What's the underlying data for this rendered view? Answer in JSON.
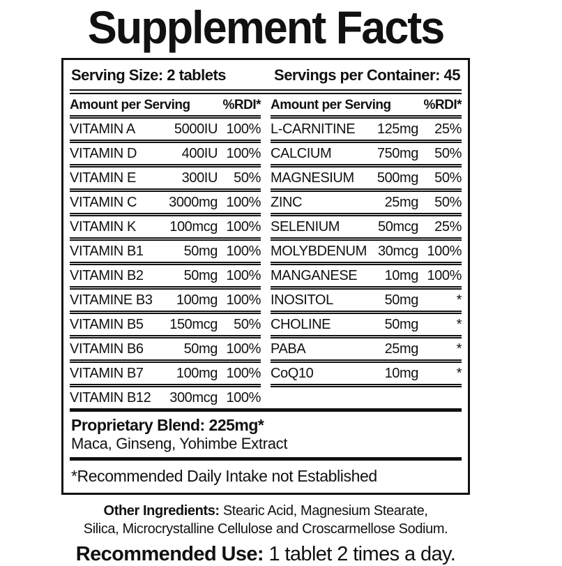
{
  "title": "Supplement Facts",
  "serving": {
    "size_label": "Serving Size: 2 tablets",
    "per_container_label": "Servings per Container: 45"
  },
  "columns": {
    "header_amount": "Amount per Serving",
    "header_rdi": "%RDI*"
  },
  "left_rows": [
    {
      "name": "VITAMIN A",
      "amount": "5000IU",
      "rdi": "100%"
    },
    {
      "name": "VITAMIN D",
      "amount": "400IU",
      "rdi": "100%"
    },
    {
      "name": "VITAMIN E",
      "amount": "300IU",
      "rdi": "50%"
    },
    {
      "name": "VITAMIN C",
      "amount": "3000mg",
      "rdi": "100%"
    },
    {
      "name": "VITAMIN K",
      "amount": "100mcg",
      "rdi": "100%"
    },
    {
      "name": "VITAMIN B1",
      "amount": "50mg",
      "rdi": "100%"
    },
    {
      "name": "VITAMIN B2",
      "amount": "50mg",
      "rdi": "100%"
    },
    {
      "name": "VITAMINE B3",
      "amount": "100mg",
      "rdi": "100%"
    },
    {
      "name": "VITAMIN B5",
      "amount": "150mcg",
      "rdi": "50%"
    },
    {
      "name": "VITAMIN B6",
      "amount": "50mg",
      "rdi": "100%"
    },
    {
      "name": "VITAMIN B7",
      "amount": "100mg",
      "rdi": "100%"
    },
    {
      "name": "VITAMIN B12",
      "amount": "300mcg",
      "rdi": "100%"
    }
  ],
  "right_rows": [
    {
      "name": "L-CARNITINE",
      "amount": "125mg",
      "rdi": "25%"
    },
    {
      "name": "CALCIUM",
      "amount": "750mg",
      "rdi": "50%"
    },
    {
      "name": "MAGNESIUM",
      "amount": "500mg",
      "rdi": "50%"
    },
    {
      "name": "ZINC",
      "amount": "25mg",
      "rdi": "50%"
    },
    {
      "name": "SELENIUM",
      "amount": "50mcg",
      "rdi": "25%"
    },
    {
      "name": "MOLYBDENUM",
      "amount": "30mcg",
      "rdi": "100%"
    },
    {
      "name": "MANGANESE",
      "amount": "10mg",
      "rdi": "100%"
    },
    {
      "name": "INOSITOL",
      "amount": "50mg",
      "rdi": "*"
    },
    {
      "name": "CHOLINE",
      "amount": "50mg",
      "rdi": "*"
    },
    {
      "name": "PABA",
      "amount": "25mg",
      "rdi": "*"
    },
    {
      "name": "CoQ10",
      "amount": "10mg",
      "rdi": "*"
    }
  ],
  "proprietary": {
    "title": "Proprietary Blend: 225mg*",
    "ingredients": "Maca, Ginseng, Yohimbe Extract"
  },
  "footnote": "*Recommended Daily Intake not Established",
  "other_ingredients": {
    "label": "Other Ingredients:",
    "line1_rest": " Stearic Acid, Magnesium Stearate,",
    "line2": "Silica, Microcrystalline Cellulose and Croscarmellose Sodium."
  },
  "recommended_use": {
    "label": "Recommended Use:",
    "text": " 1 tablet 2 times a day."
  },
  "colors": {
    "text": "#111111",
    "background": "#ffffff"
  }
}
